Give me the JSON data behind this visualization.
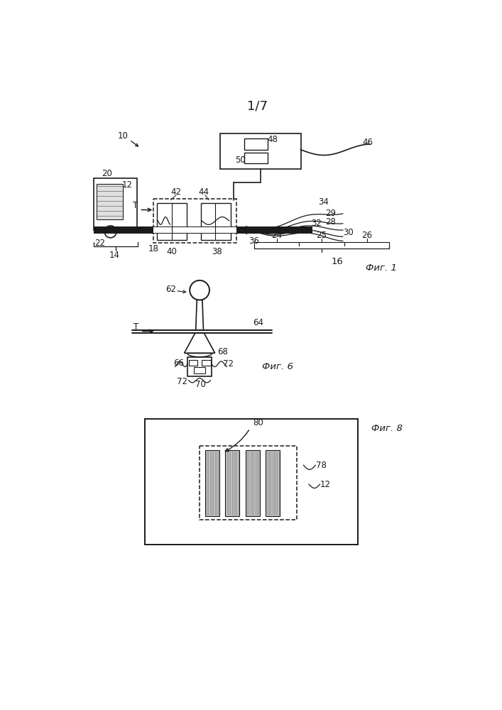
{
  "title": "1/7",
  "fig1_label": "Фиг. 1",
  "fig6_label": "Фиг. 6",
  "fig8_label": "Фиг. 8",
  "bg_color": "#ffffff",
  "line_color": "#1a1a1a",
  "label_fontsize": 8.5,
  "title_fontsize": 13
}
